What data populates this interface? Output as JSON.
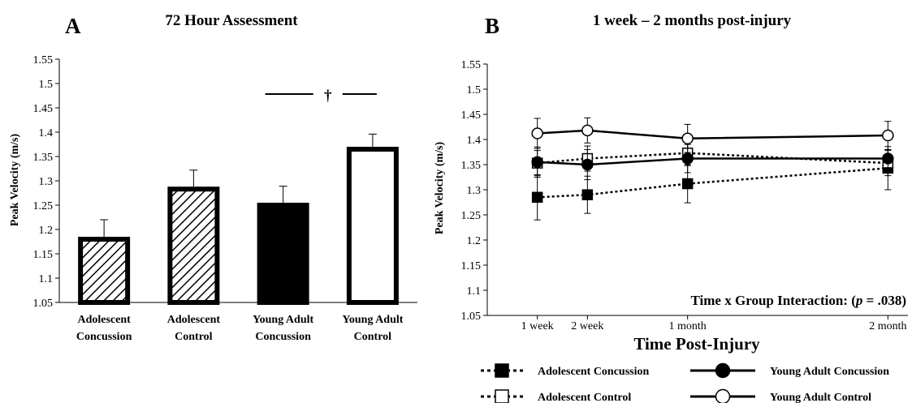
{
  "chart_data": [
    {
      "panel": "A",
      "type": "bar",
      "title": "72 Hour Assessment",
      "xlabel": "",
      "ylabel": "Peak Velocity (m/s)",
      "ylim": [
        1.05,
        1.55
      ],
      "yticks": [
        "1.05",
        "1.1",
        "1.15",
        "1.2",
        "1.25",
        "1.3",
        "1.35",
        "1.4",
        "1.45",
        "1.5",
        "1.55"
      ],
      "categories": [
        {
          "line1": "Adolescent",
          "line2": "Concussion",
          "fill": "hatch"
        },
        {
          "line1": "Adolescent",
          "line2": "Control",
          "fill": "hatch"
        },
        {
          "line1": "Young Adult",
          "line2": "Concussion",
          "fill": "solid"
        },
        {
          "line1": "Young Adult",
          "line2": "Control",
          "fill": "open"
        }
      ],
      "values": [
        1.185,
        1.288,
        1.255,
        1.37
      ],
      "errors": [
        0.035,
        0.034,
        0.034,
        0.026
      ],
      "annotation": "†",
      "grid": false
    },
    {
      "panel": "B",
      "type": "line",
      "title": "1 week – 2 months post-injury",
      "xlabel": "Time Post-Injury",
      "ylabel": "Peak Velocity (m/s)",
      "ylim": [
        1.05,
        1.55
      ],
      "yticks": [
        "1.05",
        "1.1",
        "1.15",
        "1.2",
        "1.25",
        "1.3",
        "1.35",
        "1.4",
        "1.45",
        "1.5",
        "1.55"
      ],
      "x": [
        1,
        2,
        4,
        8
      ],
      "xlim": [
        0,
        8.4
      ],
      "xtick_labels": [
        "1 week",
        "2 week",
        "1 month",
        "2 month"
      ],
      "series": [
        {
          "name": "Adolescent Concussion",
          "values": [
            1.285,
            1.29,
            1.312,
            1.343
          ],
          "errors": [
            0.045,
            0.037,
            0.038,
            0.043
          ],
          "marker": "square",
          "filled": true,
          "dash": true
        },
        {
          "name": "Adolescent Control",
          "values": [
            1.353,
            1.362,
            1.373,
            1.353
          ],
          "errors": [
            0.025,
            0.025,
            0.025,
            0.025
          ],
          "marker": "square",
          "filled": false,
          "dash": true
        },
        {
          "name": "Young Adult Concussion",
          "values": [
            1.355,
            1.35,
            1.362,
            1.362
          ],
          "errors": [
            0.03,
            0.03,
            0.028,
            0.018
          ],
          "marker": "circle",
          "filled": true,
          "dash": false
        },
        {
          "name": "Young Adult Control",
          "values": [
            1.412,
            1.418,
            1.402,
            1.408
          ],
          "errors": [
            0.03,
            0.025,
            0.028,
            0.028
          ],
          "marker": "circle",
          "filled": false,
          "dash": false
        }
      ],
      "annotation": {
        "prefix": "Time x Group Interaction: (",
        "p": "p",
        "suffix": " = .038)"
      },
      "legend_position": "bottom",
      "grid": false
    }
  ]
}
